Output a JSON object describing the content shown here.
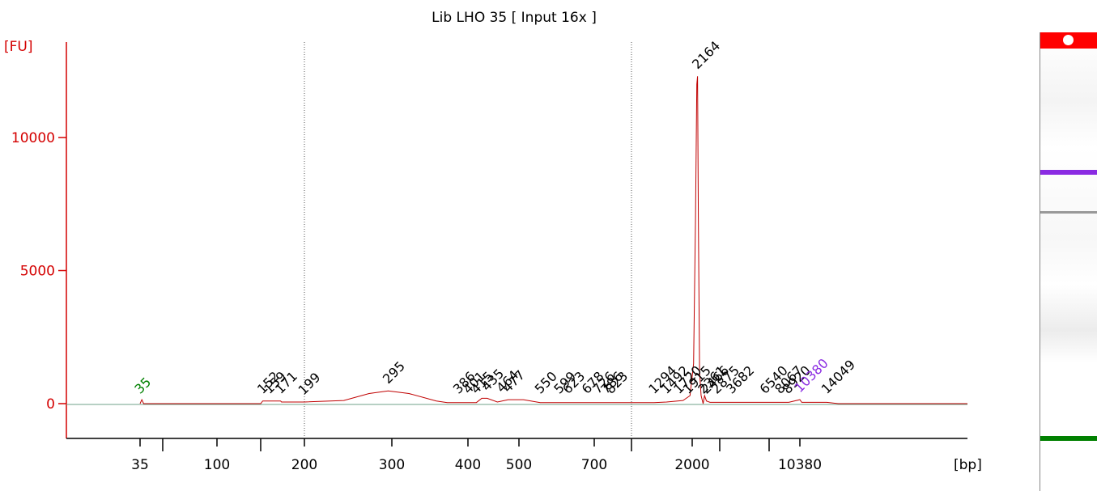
{
  "chart_data": {
    "type": "line",
    "title": "Lib LHO 35  [ Input 16x ]",
    "ylabel": "[FU]",
    "xlabel": "[bp]",
    "ylim": [
      -1200,
      13500
    ],
    "y_ticks": [
      0,
      5000,
      10000
    ],
    "y_tick_labels": [
      "0",
      "5000",
      "10000"
    ],
    "x_tick_labels": [
      "35",
      "100",
      "200",
      "300",
      "400",
      "500",
      "700",
      "2000",
      "10380"
    ],
    "x_tick_positions": [
      35,
      100,
      200,
      300,
      400,
      500,
      700,
      2000,
      10380
    ],
    "x_minor_ticks": [
      50,
      150,
      1000,
      3000,
      7000
    ],
    "dotted_markers": [
      200,
      1000
    ],
    "series": [
      {
        "color": "#c00000",
        "x": [
          35,
          36,
          37,
          150,
          152,
          171,
          172,
          199,
          200,
          240,
          270,
          295,
          320,
          355,
          370,
          386,
          415,
          425,
          435,
          455,
          477,
          510,
          550,
          600,
          650,
          700,
          760,
          825,
          900,
          1294,
          1492,
          1800,
          1950,
          2040,
          2100,
          2140,
          2164,
          2190,
          2230,
          2280,
          2350,
          2400,
          2466,
          2600,
          3000,
          3682,
          5000,
          6540,
          9000,
          10380,
          10600,
          14049,
          16000,
          100000
        ],
        "y": [
          0,
          150,
          0,
          0,
          100,
          100,
          60,
          60,
          60,
          120,
          380,
          480,
          380,
          100,
          40,
          40,
          40,
          200,
          200,
          60,
          150,
          150,
          40,
          40,
          40,
          40,
          40,
          40,
          40,
          40,
          60,
          120,
          300,
          1500,
          7000,
          12000,
          12300,
          7000,
          1200,
          300,
          0,
          300,
          100,
          50,
          50,
          50,
          50,
          50,
          50,
          150,
          50,
          50,
          0,
          0
        ]
      }
    ],
    "peak_labels": [
      {
        "text": "35",
        "x": 35,
        "y": 100,
        "color": "#008000"
      },
      {
        "text": "152",
        "x": 152,
        "y": 100,
        "color": "#000000"
      },
      {
        "text": "159",
        "x": 159,
        "y": 100,
        "color": "#000000"
      },
      {
        "text": "171",
        "x": 171,
        "y": 100,
        "color": "#000000"
      },
      {
        "text": "199",
        "x": 199,
        "y": 60,
        "color": "#000000"
      },
      {
        "text": "295",
        "x": 295,
        "y": 480,
        "color": "#000000"
      },
      {
        "text": "386",
        "x": 386,
        "y": 100,
        "color": "#000000"
      },
      {
        "text": "401",
        "x": 401,
        "y": 100,
        "color": "#000000"
      },
      {
        "text": "415",
        "x": 415,
        "y": 100,
        "color": "#000000"
      },
      {
        "text": "435",
        "x": 435,
        "y": 200,
        "color": "#000000"
      },
      {
        "text": "464",
        "x": 464,
        "y": 150,
        "color": "#000000"
      },
      {
        "text": "477",
        "x": 477,
        "y": 150,
        "color": "#000000"
      },
      {
        "text": "550",
        "x": 550,
        "y": 100,
        "color": "#000000"
      },
      {
        "text": "599",
        "x": 599,
        "y": 100,
        "color": "#000000"
      },
      {
        "text": "623",
        "x": 623,
        "y": 100,
        "color": "#000000"
      },
      {
        "text": "678",
        "x": 678,
        "y": 100,
        "color": "#000000"
      },
      {
        "text": "726",
        "x": 726,
        "y": 100,
        "color": "#000000"
      },
      {
        "text": "786",
        "x": 786,
        "y": 100,
        "color": "#000000"
      },
      {
        "text": "823",
        "x": 823,
        "y": 100,
        "color": "#000000"
      },
      {
        "text": "1294",
        "x": 1294,
        "y": 100,
        "color": "#000000"
      },
      {
        "text": "1492",
        "x": 1492,
        "y": 100,
        "color": "#000000"
      },
      {
        "text": "1720",
        "x": 1720,
        "y": 100,
        "color": "#000000"
      },
      {
        "text": "1915",
        "x": 1915,
        "y": 100,
        "color": "#000000"
      },
      {
        "text": "2164",
        "x": 2164,
        "y": 12300,
        "color": "#000000"
      },
      {
        "text": "2361",
        "x": 2361,
        "y": 100,
        "color": "#000000"
      },
      {
        "text": "2466",
        "x": 2466,
        "y": 100,
        "color": "#000000"
      },
      {
        "text": "2875",
        "x": 2875,
        "y": 100,
        "color": "#000000"
      },
      {
        "text": "3682",
        "x": 3682,
        "y": 100,
        "color": "#000000"
      },
      {
        "text": "6540",
        "x": 6540,
        "y": 100,
        "color": "#000000"
      },
      {
        "text": "8067",
        "x": 8067,
        "y": 100,
        "color": "#000000"
      },
      {
        "text": "8920",
        "x": 8920,
        "y": 100,
        "color": "#000000"
      },
      {
        "text": "10380",
        "x": 10380,
        "y": 150,
        "color": "#8a2be2"
      },
      {
        "text": "14049",
        "x": 14049,
        "y": 100,
        "color": "#000000"
      }
    ],
    "grid": false,
    "legend": "none"
  },
  "gel_lane": {
    "top_color": "#ff0000",
    "bands": [
      {
        "color": "#8a2be2",
        "at": 0.3
      },
      {
        "color": "#999999",
        "at": 0.39
      },
      {
        "color": "#008000",
        "at": 0.88
      }
    ]
  }
}
